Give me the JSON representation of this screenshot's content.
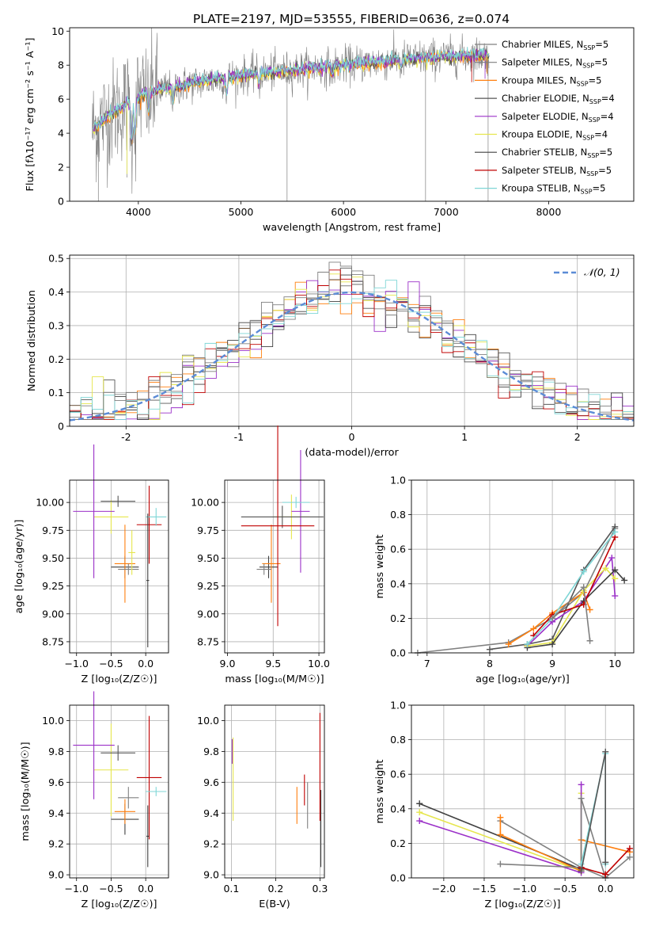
{
  "figure": {
    "title": "PLATE=2197, MJD=53555, FIBERID=0636, z=0.074"
  },
  "series_colors": [
    "#808080",
    "#7f7f7f",
    "#ff7f0e",
    "#555555",
    "#9b30c8",
    "#e6e64d",
    "#404040",
    "#c00000",
    "#7fd6d6"
  ],
  "chart_data": [
    {
      "id": "spectrum",
      "type": "line",
      "xlabel": "wavelength [Angstrom, rest frame]",
      "ylabel": "Flux [fλ10⁻¹⁷ erg cm⁻² s⁻¹ A⁻¹]",
      "xlim": [
        3330,
        8830
      ],
      "ylim": [
        0,
        10.2
      ],
      "xticks": [
        4000,
        5000,
        6000,
        7000,
        8000
      ],
      "yticks": [
        0,
        2,
        4,
        6,
        8,
        10
      ],
      "grid": false,
      "legend_position": "right",
      "series": [
        {
          "name": "Chabrier MILES, N_SSP=5"
        },
        {
          "name": "Salpeter MILES, N_SSP=5"
        },
        {
          "name": "Kroupa MILES, N_SSP=5"
        },
        {
          "name": "Chabrier ELODIE, N_SSP=4"
        },
        {
          "name": "Salpeter ELODIE, N_SSP=4"
        },
        {
          "name": "Kroupa ELODIE, N_SSP=4"
        },
        {
          "name": "Chabrier STELIB, N_SSP=5"
        },
        {
          "name": "Salpeter STELIB, N_SSP=5"
        },
        {
          "name": "Kroupa STELIB, N_SSP=5"
        }
      ],
      "continuum": [
        [
          3550,
          4.2
        ],
        [
          3700,
          5.0
        ],
        [
          3900,
          5.8
        ],
        [
          4100,
          6.4
        ],
        [
          4500,
          6.9
        ],
        [
          5000,
          7.4
        ],
        [
          5500,
          7.7
        ],
        [
          6000,
          8.0
        ],
        [
          6500,
          8.3
        ],
        [
          7000,
          8.5
        ],
        [
          7400,
          8.6
        ]
      ]
    },
    {
      "id": "residuals",
      "type": "line",
      "xlabel": "(data-model)/error",
      "ylabel": "Normed distribution",
      "xlim": [
        -2.5,
        2.5
      ],
      "ylim": [
        0,
        0.51
      ],
      "xticks": [
        -2,
        -1,
        0,
        1,
        2
      ],
      "yticks": [
        0.0,
        0.1,
        0.2,
        0.3,
        0.4,
        0.5
      ],
      "grid": true,
      "legend": [
        {
          "label": "𝒩(0, 1)",
          "style": "dashed",
          "color": "#5b8bd6"
        }
      ],
      "legend_position": "top-right"
    },
    {
      "id": "age_vs_Z",
      "type": "scatter",
      "xlabel": "Z [log₁₀(Z/Z☉)]",
      "ylabel": "age  [log₁₀(age/yr)]",
      "xlim": [
        -1.1,
        0.33
      ],
      "ylim": [
        8.65,
        10.2
      ],
      "xticks": [
        -1.0,
        -0.5,
        0.0
      ],
      "yticks": [
        8.75,
        9.0,
        9.25,
        9.5,
        9.75,
        10.0
      ],
      "xtick_labels": [
        "−1.0",
        "−0.5",
        "0.0"
      ],
      "ytick_labels": [
        "8.75",
        "9.00",
        "9.25",
        "9.50",
        "9.75",
        "10.00"
      ],
      "grid": true,
      "points": [
        {
          "x": -0.3,
          "y": 9.42,
          "xerr": 0.2,
          "yerr": 0.1,
          "c": 6
        },
        {
          "x": -0.3,
          "y": 9.45,
          "xerr": 0.15,
          "yerr": 0.35,
          "c": 2
        },
        {
          "x": -0.25,
          "y": 9.4,
          "xerr": 0.15,
          "yerr": 0.05,
          "c": 0
        },
        {
          "x": -0.5,
          "y": 9.87,
          "xerr": 0.25,
          "yerr": 0.15,
          "c": 5
        },
        {
          "x": -0.75,
          "y": 9.92,
          "xerr": 0.3,
          "yerr": 0.6,
          "c": 4
        },
        {
          "x": -0.4,
          "y": 10.01,
          "xerr": 0.25,
          "yerr": 0.05,
          "c": 3
        },
        {
          "x": 0.05,
          "y": 9.8,
          "xerr": 0.18,
          "yerr": 0.35,
          "c": 7
        },
        {
          "x": 0.15,
          "y": 9.87,
          "xerr": 0.15,
          "yerr": 0.08,
          "c": 8
        },
        {
          "x": 0.03,
          "y": 9.3,
          "xerr": 0.02,
          "yerr": 0.6,
          "c": 6
        },
        {
          "x": -0.2,
          "y": 9.55,
          "xerr": 0.05,
          "yerr": 0.2,
          "c": 5
        }
      ]
    },
    {
      "id": "age_vs_mass",
      "type": "scatter",
      "xlabel": "mass [log₁₀(M/M☉)]",
      "ylabel": "",
      "xlim": [
        8.97,
        10.06
      ],
      "ylim": [
        8.65,
        10.2
      ],
      "xticks": [
        9.0,
        9.5,
        10.0
      ],
      "yticks": [
        8.75,
        9.0,
        9.25,
        9.5,
        9.75,
        10.0
      ],
      "xtick_labels": [
        "9.0",
        "9.5",
        "10.0"
      ],
      "ytick_labels": [
        "8.75",
        "9.00",
        "9.25",
        "9.50",
        "9.75",
        "10.00"
      ],
      "grid": true,
      "points": [
        {
          "x": 9.45,
          "y": 9.42,
          "xerr": 0.1,
          "yerr": 0.1,
          "c": 6
        },
        {
          "x": 9.48,
          "y": 9.45,
          "xerr": 0.1,
          "yerr": 0.35,
          "c": 2
        },
        {
          "x": 9.4,
          "y": 9.4,
          "xerr": 0.08,
          "yerr": 0.05,
          "c": 0
        },
        {
          "x": 9.7,
          "y": 9.87,
          "xerr": 0.2,
          "yerr": 0.2,
          "c": 5
        },
        {
          "x": 9.8,
          "y": 9.92,
          "xerr": 0.1,
          "yerr": 0.55,
          "c": 4
        },
        {
          "x": 9.6,
          "y": 9.87,
          "xerr": 0.45,
          "yerr": 0.1,
          "c": 3
        },
        {
          "x": 9.55,
          "y": 9.79,
          "xerr": 0.4,
          "yerr": 0.9,
          "c": 7
        },
        {
          "x": 9.75,
          "y": 10.0,
          "xerr": 0.15,
          "yerr": 0.05,
          "c": 8
        }
      ]
    },
    {
      "id": "weight_vs_age",
      "type": "line",
      "xlabel": "age  [log₁₀(age/yr)]",
      "ylabel": "mass weight",
      "xlim": [
        6.75,
        10.3
      ],
      "ylim": [
        0,
        1.0
      ],
      "xticks": [
        7,
        8,
        9,
        10
      ],
      "yticks": [
        0.0,
        0.2,
        0.4,
        0.6,
        0.8,
        1.0
      ],
      "xtick_labels": [
        "7",
        "8",
        "9",
        "10"
      ],
      "ytick_labels": [
        "0.0",
        "0.2",
        "0.4",
        "0.6",
        "0.8",
        "1.0"
      ],
      "grid": true,
      "series": [
        {
          "c": 0,
          "points": [
            [
              6.85,
              0.0
            ],
            [
              8.3,
              0.06
            ],
            [
              9.0,
              0.2
            ],
            [
              9.5,
              0.35
            ],
            [
              10.0,
              0.72
            ]
          ]
        },
        {
          "c": 3,
          "points": [
            [
              8.0,
              0.02
            ],
            [
              8.6,
              0.05
            ],
            [
              9.0,
              0.08
            ],
            [
              9.5,
              0.48
            ],
            [
              10.0,
              0.73
            ]
          ]
        },
        {
          "c": 2,
          "points": [
            [
              8.3,
              0.05
            ],
            [
              8.7,
              0.14
            ],
            [
              9.0,
              0.23
            ],
            [
              9.5,
              0.35
            ],
            [
              9.6,
              0.25
            ]
          ]
        },
        {
          "c": 4,
          "points": [
            [
              8.6,
              0.04
            ],
            [
              9.0,
              0.18
            ],
            [
              9.5,
              0.3
            ],
            [
              9.95,
              0.55
            ],
            [
              10.0,
              0.33
            ]
          ]
        },
        {
          "c": 5,
          "points": [
            [
              8.6,
              0.04
            ],
            [
              9.0,
              0.06
            ],
            [
              9.5,
              0.36
            ],
            [
              9.85,
              0.49
            ],
            [
              10.0,
              0.43
            ]
          ]
        },
        {
          "c": 6,
          "points": [
            [
              8.6,
              0.03
            ],
            [
              9.0,
              0.05
            ],
            [
              9.5,
              0.3
            ],
            [
              10.0,
              0.48
            ],
            [
              10.15,
              0.42
            ]
          ]
        },
        {
          "c": 7,
          "points": [
            [
              8.7,
              0.1
            ],
            [
              9.0,
              0.22
            ],
            [
              9.5,
              0.28
            ],
            [
              10.0,
              0.67
            ]
          ]
        },
        {
          "c": 8,
          "points": [
            [
              8.6,
              0.05
            ],
            [
              9.0,
              0.2
            ],
            [
              9.5,
              0.47
            ],
            [
              10.0,
              0.7
            ]
          ]
        },
        {
          "c": 1,
          "points": [
            [
              9.0,
              0.2
            ],
            [
              9.5,
              0.38
            ],
            [
              9.6,
              0.07
            ]
          ]
        }
      ]
    },
    {
      "id": "mass_vs_Z",
      "type": "scatter",
      "xlabel": "Z [log₁₀(Z/Z☉)]",
      "ylabel": "mass [log₁₀(M/M☉)]",
      "xlim": [
        -1.1,
        0.33
      ],
      "ylim": [
        8.98,
        10.1
      ],
      "xticks": [
        -1.0,
        -0.5,
        0.0
      ],
      "yticks": [
        9.0,
        9.2,
        9.4,
        9.6,
        9.8,
        10.0
      ],
      "xtick_labels": [
        "−1.0",
        "−0.5",
        "0.0"
      ],
      "ytick_labels": [
        "9.0",
        "9.2",
        "9.4",
        "9.6",
        "9.8",
        "10.0"
      ],
      "grid": true,
      "points": [
        {
          "x": -0.3,
          "y": 9.36,
          "xerr": 0.2,
          "yerr": 0.1,
          "c": 6
        },
        {
          "x": -0.3,
          "y": 9.41,
          "xerr": 0.15,
          "yerr": 0.08,
          "c": 2
        },
        {
          "x": -0.25,
          "y": 9.5,
          "xerr": 0.15,
          "yerr": 0.07,
          "c": 0
        },
        {
          "x": -0.5,
          "y": 9.68,
          "xerr": 0.25,
          "yerr": 0.3,
          "c": 5
        },
        {
          "x": -0.75,
          "y": 9.84,
          "xerr": 0.3,
          "yerr": 0.35,
          "c": 4
        },
        {
          "x": -0.4,
          "y": 9.79,
          "xerr": 0.25,
          "yerr": 0.05,
          "c": 3
        },
        {
          "x": 0.05,
          "y": 9.63,
          "xerr": 0.18,
          "yerr": 0.4,
          "c": 7
        },
        {
          "x": 0.15,
          "y": 9.54,
          "xerr": 0.15,
          "yerr": 0.03,
          "c": 8
        },
        {
          "x": 0.03,
          "y": 9.25,
          "xerr": 0.02,
          "yerr": 0.2,
          "c": 6
        }
      ]
    },
    {
      "id": "mass_vs_ebv",
      "type": "scatter",
      "xlabel": "E(B-V)",
      "ylabel": "",
      "xlim": [
        0.085,
        0.31
      ],
      "ylim": [
        8.98,
        10.1
      ],
      "xticks": [
        0.1,
        0.2,
        0.3
      ],
      "yticks": [
        9.0,
        9.2,
        9.4,
        9.6,
        9.8,
        10.0
      ],
      "xtick_labels": [
        "0.1",
        "0.2",
        "0.3"
      ],
      "ytick_labels": [
        "9.0",
        "9.2",
        "9.4",
        "9.6",
        "9.8",
        "10.0"
      ],
      "grid": true,
      "points": [
        {
          "x": 0.102,
          "y": 9.8,
          "xerr": 0,
          "yerr": 0.08,
          "c": 4
        },
        {
          "x": 0.104,
          "y": 9.62,
          "xerr": 0,
          "yerr": 0.27,
          "c": 5
        },
        {
          "x": 0.248,
          "y": 9.45,
          "xerr": 0,
          "yerr": 0.12,
          "c": 2
        },
        {
          "x": 0.265,
          "y": 9.55,
          "xerr": 0,
          "yerr": 0.1,
          "c": 7
        },
        {
          "x": 0.272,
          "y": 9.45,
          "xerr": 0,
          "yerr": 0.15,
          "c": 0
        },
        {
          "x": 0.3,
          "y": 9.7,
          "xerr": 0,
          "yerr": 0.35,
          "c": 7
        },
        {
          "x": 0.302,
          "y": 9.3,
          "xerr": 0,
          "yerr": 0.25,
          "c": 6
        }
      ]
    },
    {
      "id": "weight_vs_Z",
      "type": "line",
      "xlabel": "Z [log₁₀(Z/Z☉)]",
      "ylabel": "mass weight",
      "xlim": [
        -2.4,
        0.35
      ],
      "ylim": [
        0,
        1.0
      ],
      "xticks": [
        -2.0,
        -1.5,
        -1.0,
        -0.5,
        0.0
      ],
      "yticks": [
        0.0,
        0.2,
        0.4,
        0.6,
        0.8,
        1.0
      ],
      "xtick_labels": [
        "−2.0",
        "−1.5",
        "−1.0",
        "−0.5",
        "0.0"
      ],
      "ytick_labels": [
        "0.0",
        "0.2",
        "0.4",
        "0.6",
        "0.8",
        "1.0"
      ],
      "grid": true,
      "series": [
        {
          "c": 6,
          "points": [
            [
              -2.3,
              0.43
            ],
            [
              -0.3,
              0.05
            ]
          ]
        },
        {
          "c": 5,
          "points": [
            [
              -2.3,
              0.38
            ],
            [
              -0.3,
              0.04
            ],
            [
              -0.3,
              0.49
            ]
          ]
        },
        {
          "c": 4,
          "points": [
            [
              -2.3,
              0.33
            ],
            [
              -0.3,
              0.03
            ],
            [
              -0.3,
              0.54
            ]
          ]
        },
        {
          "c": 0,
          "points": [
            [
              -1.3,
              0.33
            ],
            [
              -0.3,
              0.06
            ],
            [
              0.0,
              0.0
            ]
          ]
        },
        {
          "c": 2,
          "points": [
            [
              -1.3,
              0.35
            ],
            [
              -1.3,
              0.25
            ],
            [
              -0.3,
              0.04
            ],
            [
              -0.3,
              0.22
            ],
            [
              0.3,
              0.15
            ]
          ]
        },
        {
          "c": 1,
          "points": [
            [
              -1.3,
              0.08
            ],
            [
              -0.3,
              0.06
            ],
            [
              -0.3,
              0.46
            ],
            [
              0.0,
              0.0
            ],
            [
              0.3,
              0.12
            ]
          ]
        },
        {
          "c": 7,
          "points": [
            [
              -0.3,
              0.06
            ],
            [
              0.0,
              0.02
            ],
            [
              0.3,
              0.17
            ]
          ]
        },
        {
          "c": 8,
          "points": [
            [
              -0.3,
              0.08
            ],
            [
              0.0,
              0.72
            ],
            [
              0.0,
              0.08
            ]
          ]
        },
        {
          "c": 3,
          "points": [
            [
              -0.3,
              0.04
            ],
            [
              0.0,
              0.73
            ],
            [
              0.0,
              0.09
            ]
          ]
        }
      ]
    }
  ]
}
